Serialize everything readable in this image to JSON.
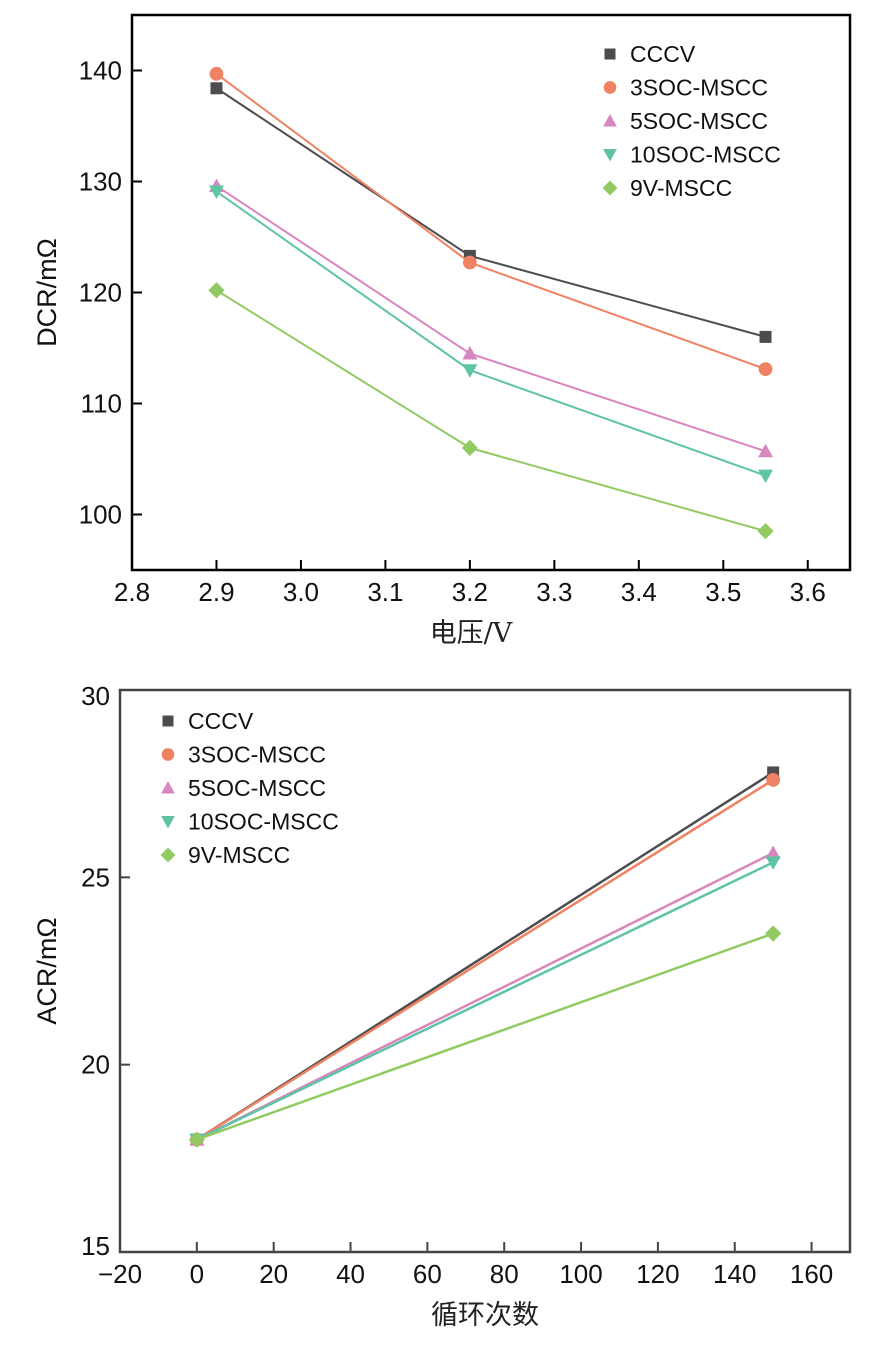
{
  "chart_data": [
    {
      "type": "line",
      "xlabel": "电压/V",
      "ylabel": "DCR/mΩ",
      "xlim": [
        2.8,
        3.65
      ],
      "ylim": [
        95,
        145
      ],
      "xticks": [
        "2.8",
        "2.9",
        "3.0",
        "3.1",
        "3.2",
        "3.3",
        "3.4",
        "3.5",
        "3.6"
      ],
      "xtick_values": [
        2.8,
        2.9,
        3.0,
        3.1,
        3.2,
        3.3,
        3.4,
        3.5,
        3.6
      ],
      "yticks": [
        "100",
        "110",
        "120",
        "130",
        "140"
      ],
      "ytick_values": [
        100,
        110,
        120,
        130,
        140
      ],
      "x": [
        2.9,
        3.2,
        3.55
      ],
      "legend": "top-right",
      "grid": false,
      "series": [
        {
          "name": "CCCV",
          "marker": "square",
          "color": "#4d4d4f",
          "values": [
            138.4,
            123.3,
            116.0
          ]
        },
        {
          "name": "3SOC-MSCC",
          "marker": "circle",
          "color": "#f08264",
          "values": [
            139.7,
            122.7,
            113.1
          ]
        },
        {
          "name": "5SOC-MSCC",
          "marker": "triangle-up",
          "color": "#d886c0",
          "values": [
            129.6,
            114.5,
            105.7
          ]
        },
        {
          "name": "10SOC-MSCC",
          "marker": "triangle-down",
          "color": "#5ec4a4",
          "values": [
            129.1,
            113.0,
            103.5
          ]
        },
        {
          "name": "9V-MSCC",
          "marker": "diamond",
          "color": "#92ca62",
          "values": [
            120.2,
            106.0,
            98.5
          ]
        }
      ]
    },
    {
      "type": "line",
      "xlabel": "循环次数",
      "ylabel": "ACR/mΩ",
      "xlim": [
        -20,
        170
      ],
      "ylim": [
        15,
        30
      ],
      "xticks": [
        "−20",
        "0",
        "20",
        "40",
        "60",
        "80",
        "100",
        "120",
        "140",
        "160"
      ],
      "xtick_values": [
        -20,
        0,
        20,
        40,
        60,
        80,
        100,
        120,
        140,
        160
      ],
      "yticks": [
        "15",
        "20",
        "25",
        "30"
      ],
      "ytick_values": [
        15,
        20,
        25,
        30
      ],
      "x": [
        0,
        150
      ],
      "legend": "top-left",
      "grid": false,
      "series": [
        {
          "name": "CCCV",
          "marker": "square",
          "color": "#4d4d4f",
          "values": [
            18.0,
            27.8
          ]
        },
        {
          "name": "3SOC-MSCC",
          "marker": "circle",
          "color": "#f08264",
          "values": [
            18.0,
            27.6
          ]
        },
        {
          "name": "5SOC-MSCC",
          "marker": "triangle-up",
          "color": "#d886c0",
          "values": [
            18.0,
            25.65
          ]
        },
        {
          "name": "10SOC-MSCC",
          "marker": "triangle-down",
          "color": "#5ec4a4",
          "values": [
            18.0,
            25.4
          ]
        },
        {
          "name": "9V-MSCC",
          "marker": "diamond",
          "color": "#92ca62",
          "values": [
            18.0,
            23.5
          ]
        }
      ]
    }
  ]
}
